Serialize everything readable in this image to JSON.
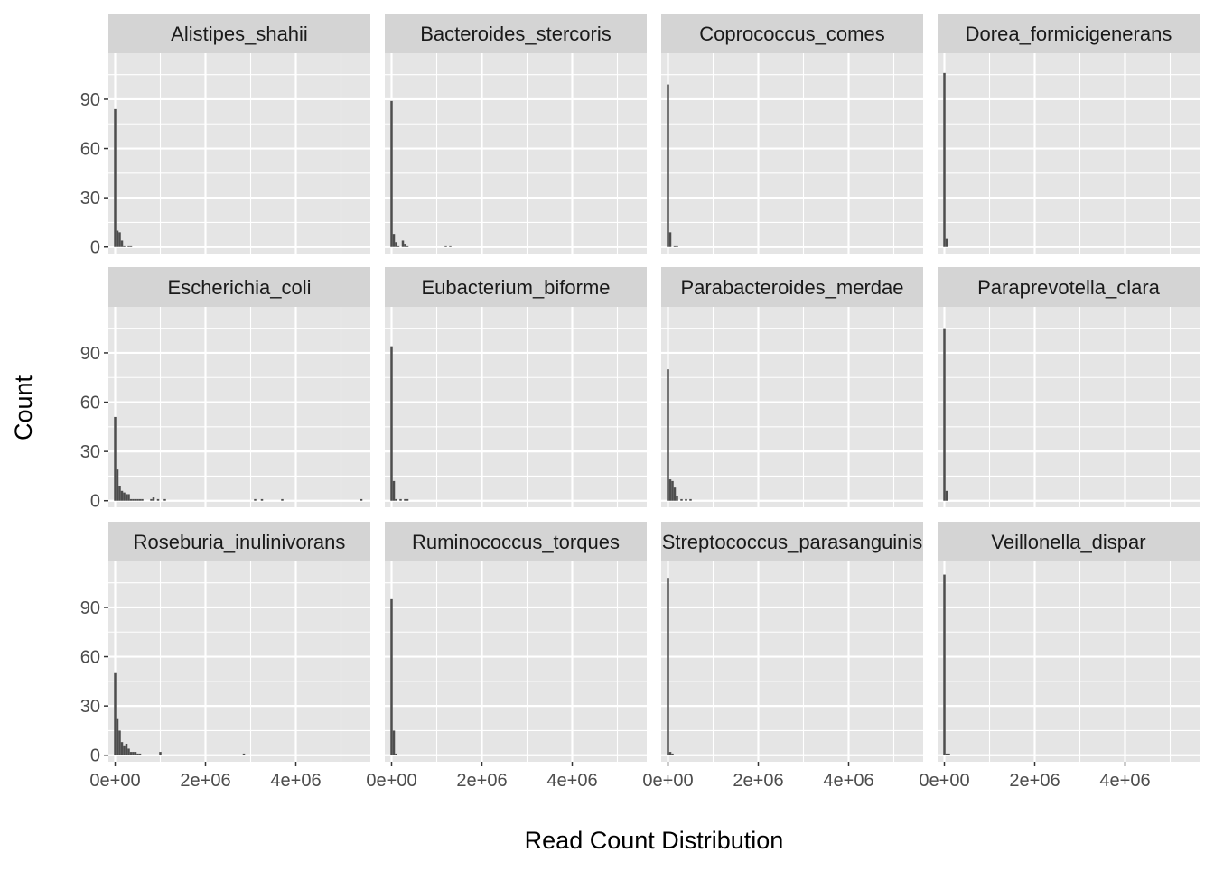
{
  "chart_data": {
    "type": "bar",
    "subtype": "faceted-histogram",
    "xlabel": "Read Count Distribution",
    "ylabel": "Count",
    "xlim": [
      -150000,
      5650000
    ],
    "ylim": [
      -4,
      118
    ],
    "x_ticks": [
      0,
      2000000,
      4000000
    ],
    "x_tick_labels": [
      "0e+00",
      "2e+06",
      "4e+06"
    ],
    "y_ticks": [
      0,
      30,
      60,
      90
    ],
    "y_tick_labels": [
      "0",
      "30",
      "60",
      "90"
    ],
    "bin_width": 50000,
    "grid": true,
    "legend": "none",
    "colors": {
      "panel_bg": "#e5e5e5",
      "grid": "#ffffff",
      "strip_bg": "#d4d4d4",
      "bar": "#4d4d4d",
      "tick_text": "#4d4d4d",
      "axis_text": "#000000"
    },
    "facets": [
      {
        "title": "Alistipes_shahii",
        "bins": [
          [
            0,
            84
          ],
          [
            50000,
            10
          ],
          [
            100000,
            9
          ],
          [
            150000,
            4
          ],
          [
            200000,
            1
          ],
          [
            300000,
            1
          ],
          [
            350000,
            1
          ]
        ]
      },
      {
        "title": "Bacteroides_stercoris",
        "bins": [
          [
            0,
            89
          ],
          [
            50000,
            8
          ],
          [
            100000,
            3
          ],
          [
            150000,
            1
          ],
          [
            250000,
            4
          ],
          [
            300000,
            2
          ],
          [
            350000,
            1
          ],
          [
            1200000,
            1
          ],
          [
            1300000,
            1
          ]
        ]
      },
      {
        "title": "Coprococcus_comes",
        "bins": [
          [
            0,
            99
          ],
          [
            50000,
            9
          ],
          [
            150000,
            1
          ],
          [
            200000,
            1
          ]
        ]
      },
      {
        "title": "Dorea_formicigenerans",
        "bins": [
          [
            0,
            106
          ],
          [
            50000,
            5
          ]
        ]
      },
      {
        "title": "Escherichia_coli",
        "bins": [
          [
            0,
            51
          ],
          [
            50000,
            19
          ],
          [
            100000,
            9
          ],
          [
            150000,
            6
          ],
          [
            200000,
            5
          ],
          [
            250000,
            4
          ],
          [
            300000,
            4
          ],
          [
            350000,
            1
          ],
          [
            400000,
            1
          ],
          [
            450000,
            1
          ],
          [
            500000,
            1
          ],
          [
            550000,
            1
          ],
          [
            600000,
            1
          ],
          [
            800000,
            1
          ],
          [
            850000,
            2
          ],
          [
            950000,
            1
          ],
          [
            1100000,
            1
          ],
          [
            3100000,
            1
          ],
          [
            3250000,
            1
          ],
          [
            3700000,
            1
          ],
          [
            5450000,
            1
          ]
        ]
      },
      {
        "title": "Eubacterium_biforme",
        "bins": [
          [
            0,
            94
          ],
          [
            50000,
            12
          ],
          [
            100000,
            1
          ],
          [
            200000,
            1
          ],
          [
            300000,
            1
          ],
          [
            350000,
            1
          ]
        ]
      },
      {
        "title": "Parabacteroides_merdae",
        "bins": [
          [
            0,
            80
          ],
          [
            50000,
            13
          ],
          [
            100000,
            12
          ],
          [
            150000,
            8
          ],
          [
            200000,
            3
          ],
          [
            300000,
            1
          ],
          [
            400000,
            1
          ],
          [
            500000,
            1
          ]
        ]
      },
      {
        "title": "Paraprevotella_clara",
        "bins": [
          [
            0,
            105
          ],
          [
            50000,
            6
          ]
        ]
      },
      {
        "title": "Roseburia_inulinivorans",
        "bins": [
          [
            0,
            50
          ],
          [
            50000,
            22
          ],
          [
            100000,
            15
          ],
          [
            150000,
            8
          ],
          [
            200000,
            6
          ],
          [
            250000,
            7
          ],
          [
            300000,
            4
          ],
          [
            350000,
            2
          ],
          [
            400000,
            2
          ],
          [
            450000,
            2
          ],
          [
            500000,
            1
          ],
          [
            550000,
            1
          ],
          [
            1000000,
            2
          ],
          [
            2850000,
            1
          ]
        ]
      },
      {
        "title": "Ruminococcus_torques",
        "bins": [
          [
            0,
            95
          ],
          [
            50000,
            15
          ],
          [
            100000,
            1
          ]
        ]
      },
      {
        "title": "Streptococcus_parasanguinis",
        "bins": [
          [
            0,
            108
          ],
          [
            50000,
            2
          ],
          [
            100000,
            1
          ]
        ]
      },
      {
        "title": "Veillonella_dispar",
        "bins": [
          [
            0,
            110
          ],
          [
            50000,
            1
          ],
          [
            100000,
            1
          ]
        ]
      }
    ]
  }
}
